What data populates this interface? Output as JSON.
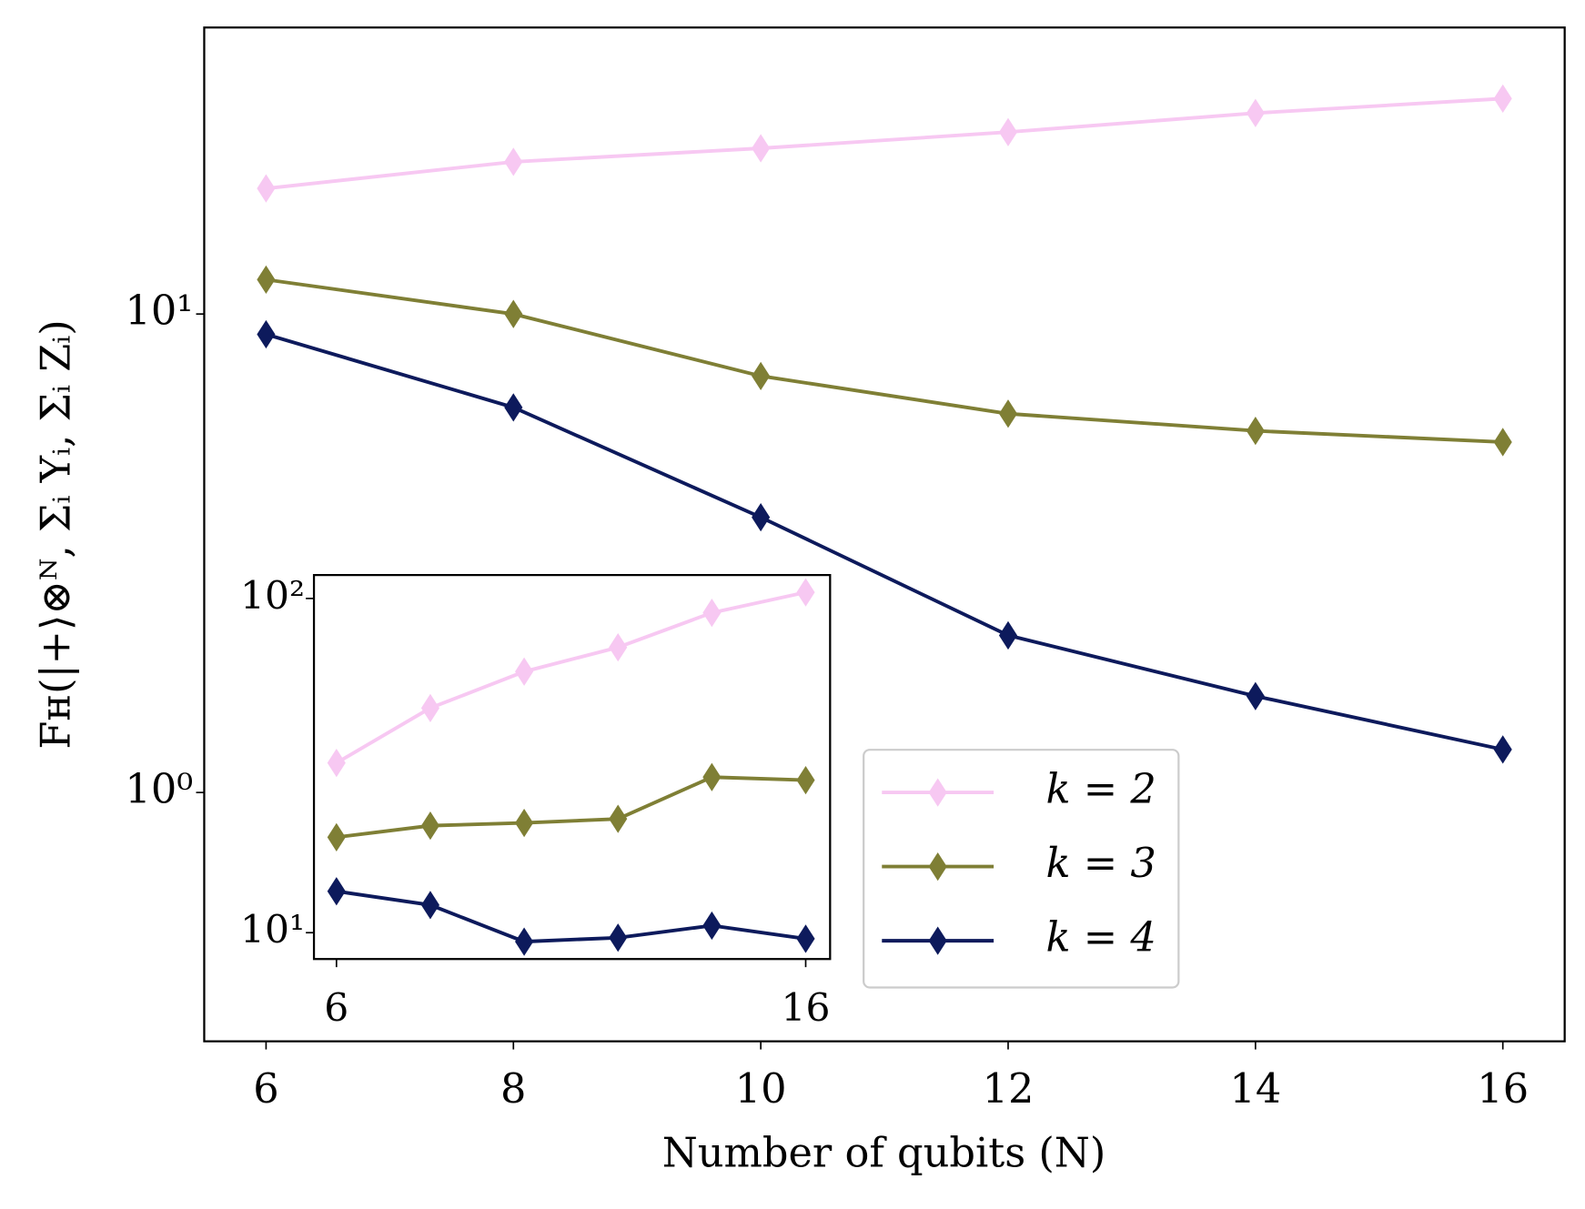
{
  "chart_data": [
    {
      "type": "line",
      "xlabel": "Number of qubits (N)",
      "ylabel": "Fʜ(|+⟩⊗ᴺ, Σᵢ Yᵢ, Σᵢ Zᵢ)",
      "yscale": "log",
      "legend": "lower right",
      "x": [
        6,
        8,
        10,
        12,
        14,
        16
      ],
      "xlim": [
        5.5,
        16.5
      ],
      "xticks": [
        6,
        8,
        10,
        12,
        14,
        16
      ],
      "ylim": [
        0.302,
        39.7
      ],
      "yticks": [
        {
          "value": 1,
          "label": "10⁰"
        },
        {
          "value": 10,
          "label": "10¹"
        }
      ],
      "series": [
        {
          "name": "k = 2",
          "color": "#f7c8f2",
          "values": [
            18.3,
            20.8,
            22.2,
            24.0,
            26.3,
            28.2
          ]
        },
        {
          "name": "k = 3",
          "color": "#7f7f35",
          "values": [
            11.8,
            10.0,
            7.42,
            6.19,
            5.7,
            5.4
          ]
        },
        {
          "name": "k = 4",
          "color": "#0d1a5c",
          "values": [
            9.07,
            6.38,
            3.76,
            2.13,
            1.59,
            1.23
          ]
        }
      ]
    },
    {
      "type": "line",
      "yscale": "log",
      "x": [
        6,
        8,
        10,
        12,
        14,
        16
      ],
      "xlim": [
        5.52,
        16.52
      ],
      "xticks": [
        6,
        16
      ],
      "ylim": [
        8.34,
        117.5
      ],
      "yticks": [
        {
          "value": 10,
          "label": "10¹"
        },
        {
          "value": 100,
          "label": "10²"
        }
      ],
      "series": [
        {
          "color": "#f7c8f2",
          "values": [
            32.2,
            47.0,
            60.4,
            71.4,
            90.6,
            104.3
          ]
        },
        {
          "color": "#7f7f35",
          "values": [
            19.3,
            20.9,
            21.3,
            21.9,
            29.2,
            28.6
          ]
        },
        {
          "color": "#0d1a5c",
          "values": [
            13.3,
            12.1,
            9.4,
            9.66,
            10.5,
            9.59
          ]
        }
      ]
    }
  ]
}
